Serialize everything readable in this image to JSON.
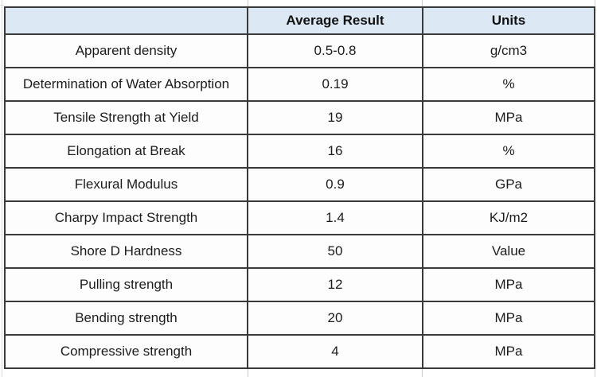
{
  "chart_data": {
    "type": "table",
    "title": "",
    "columns": [
      "",
      "Average Result",
      "Units"
    ],
    "rows": [
      [
        "Apparent density",
        "0.5-0.8",
        "g/cm3"
      ],
      [
        "Determination of Water Absorption",
        "0.19",
        "%"
      ],
      [
        "Tensile Strength at Yield",
        "19",
        "MPa"
      ],
      [
        "Elongation at Break",
        "16",
        "%"
      ],
      [
        "Flexural Modulus",
        "0.9",
        "GPa"
      ],
      [
        "Charpy Impact Strength",
        "1.4",
        "KJ/m2"
      ],
      [
        "Shore D Hardness",
        "50",
        "Value"
      ],
      [
        "Pulling strength",
        "12",
        "MPa"
      ],
      [
        "Bending strength",
        "20",
        "MPa"
      ],
      [
        "Compressive strength",
        "4",
        "MPa"
      ]
    ],
    "layout_hints": {
      "header_row": true,
      "grid": true,
      "alignment": "center"
    }
  },
  "colors": {
    "header_background": "#dce9f5",
    "cell_background": "#fdfdfd",
    "border": "#3a3a3a",
    "faint_gridline": "#d9dde0",
    "text": "#1c1c1c"
  }
}
